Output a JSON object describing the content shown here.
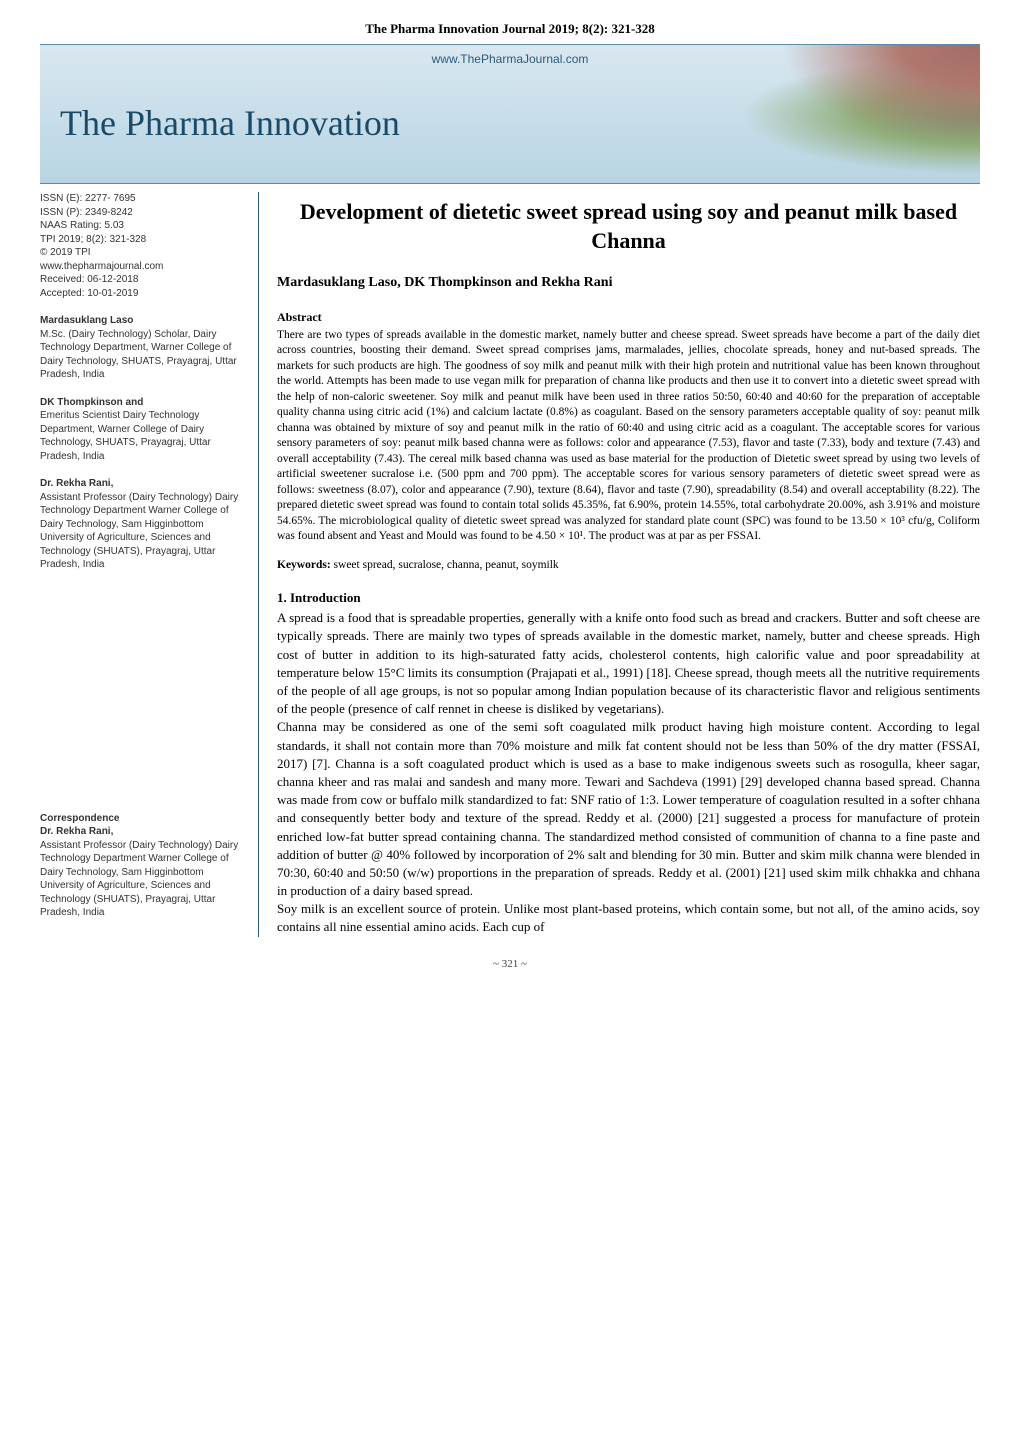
{
  "journal_header": "The Pharma Innovation Journal 2019; 8(2): 321-328",
  "banner": {
    "website_url": "www.ThePharmaJournal.com",
    "site_title": "The Pharma Innovation"
  },
  "meta": {
    "issn_e": "ISSN (E): 2277- 7695",
    "issn_p": "ISSN (P): 2349-8242",
    "naas": "NAAS Rating: 5.03",
    "tpi": "TPI 2019; 8(2): 321-328",
    "copyright": "© 2019 TPI",
    "website": "www.thepharmajournal.com",
    "received": "Received: 06-12-2018",
    "accepted": "Accepted: 10-01-2019"
  },
  "authors_sidebar": [
    {
      "name": "Mardasuklang Laso",
      "affiliation": "M.Sc. (Dairy Technology) Scholar, Dairy Technology Department, Warner College of Dairy Technology, SHUATS, Prayagraj, Uttar Pradesh, India"
    },
    {
      "name": "DK Thompkinson and",
      "affiliation": "Emeritus Scientist\nDairy Technology Department, Warner College of Dairy Technology, SHUATS, Prayagraj, Uttar Pradesh, India"
    },
    {
      "name": "Dr. Rekha Rani,",
      "affiliation": "Assistant Professor (Dairy Technology) Dairy Technology Department Warner College of Dairy Technology, Sam Higginbottom University of Agriculture, Sciences and Technology (SHUATS), Prayagraj, Uttar Pradesh, India"
    }
  ],
  "correspondence": {
    "heading": "Correspondence",
    "name": "Dr. Rekha Rani,",
    "affiliation": "Assistant Professor (Dairy Technology) Dairy Technology Department Warner College of Dairy Technology, Sam Higginbottom University of Agriculture, Sciences and Technology (SHUATS), Prayagraj, Uttar Pradesh, India"
  },
  "article": {
    "title": "Development of dietetic sweet spread using soy and peanut milk based Channa",
    "authors_line": "Mardasuklang Laso, DK Thompkinson and Rekha Rani",
    "abstract_heading": "Abstract",
    "abstract_body": "There are two types of spreads available in the domestic market, namely butter and cheese spread. Sweet spreads have become a part of the daily diet across countries, boosting their demand. Sweet spread comprises jams, marmalades, jellies, chocolate spreads, honey and nut-based spreads. The markets for such products are high. The goodness of soy milk and peanut milk with their high protein and nutritional value has been known throughout the world. Attempts has been made to use vegan milk for preparation of channa like products and then use it to convert into a dietetic sweet spread with the help of non-caloric sweetener. Soy milk and peanut milk have been used in three ratios 50:50, 60:40 and 40:60 for the preparation of acceptable quality channa using citric acid (1%) and calcium lactate (0.8%) as coagulant. Based on the sensory parameters acceptable quality of soy: peanut milk channa was obtained by mixture of soy and peanut milk in the ratio of 60:40 and using citric acid as a coagulant. The acceptable scores for various sensory parameters of soy: peanut milk based channa were as follows: color and appearance (7.53), flavor and taste (7.33), body and texture (7.43) and overall acceptability (7.43). The cereal milk based channa was used as base material for the production of Dietetic sweet spread by using two levels of artificial sweetener sucralose i.e. (500 ppm and 700 ppm). The acceptable scores for various sensory parameters of dietetic sweet spread were as follows: sweetness (8.07), color and appearance (7.90), texture (8.64), flavor and taste (7.90), spreadability (8.54) and overall acceptability (8.22). The prepared dietetic sweet spread was found to contain total solids 45.35%, fat 6.90%, protein 14.55%, total carbohydrate 20.00%, ash 3.91% and moisture 54.65%. The microbiological quality of dietetic sweet spread was analyzed for standard plate count (SPC) was found to be 13.50 × 10³ cfu/g, Coliform was found absent and Yeast and Mould was found to be 4.50 × 10¹. The product was at par as per FSSAI.",
    "keywords_label": "Keywords:",
    "keywords_value": " sweet spread, sucralose, channa, peanut, soymilk",
    "intro_heading": "1. Introduction",
    "intro_p1": "A spread is a food that is spreadable properties, generally with a knife onto food such as bread and crackers. Butter and soft cheese are typically spreads. There are mainly two types of spreads available in the domestic market, namely, butter and cheese spreads. High cost of butter in addition to its high-saturated fatty acids, cholesterol contents, high calorific value and poor spreadability at temperature below 15°C limits its consumption (Prajapati et al., 1991) [18]. Cheese spread, though meets all the nutritive requirements of the people of all age groups, is not so popular among Indian population because of its characteristic flavor and religious sentiments of the people (presence of calf rennet in cheese is disliked by vegetarians).",
    "intro_p2": "Channa may be considered as one of the semi soft coagulated milk product having high moisture content. According to legal standards, it shall not contain more than 70% moisture and milk fat content should not be less than 50% of the dry matter (FSSAI, 2017) [7]. Channa is a soft coagulated product which is used as a base to make indigenous sweets such as rosogulla, kheer sagar, channa kheer and ras malai and sandesh and many more. Tewari and Sachdeva (1991) [29] developed channa based spread. Channa was made from cow or buffalo milk standardized to fat: SNF ratio of 1:3. Lower temperature of coagulation resulted in a softer chhana and consequently better body and texture of the spread. Reddy et al. (2000) [21] suggested a process for manufacture of protein enriched low-fat butter spread containing channa. The standardized method consisted of communition of channa to a fine paste and addition of butter @ 40% followed by incorporation of 2% salt and blending for 30 min. Butter and skim milk channa were blended in 70:30, 60:40 and 50:50 (w/w) proportions in the preparation of spreads. Reddy et al. (2001) [21] used skim milk chhakka and chhana in production of a dairy based spread.",
    "intro_p3": "Soy milk is an excellent source of protein. Unlike most plant-based proteins, which contain some, but not all, of the amino acids, soy contains all nine essential amino acids. Each cup of"
  },
  "page_number": "~ 321 ~",
  "colors": {
    "banner_gradient_top": "#d9e8f0",
    "banner_gradient_bottom": "#b8d4e3",
    "banner_border": "#5a8aa8",
    "banner_title_color": "#1a4a6a",
    "left_border_color": "#2a5a7a",
    "text_color": "#000000",
    "sidebar_text_color": "#333333"
  },
  "typography": {
    "body_font": "Times New Roman",
    "sidebar_font": "Arial",
    "title_fontsize": 22,
    "body_fontsize": 13,
    "abstract_fontsize": 11.5,
    "sidebar_fontsize": 10
  }
}
